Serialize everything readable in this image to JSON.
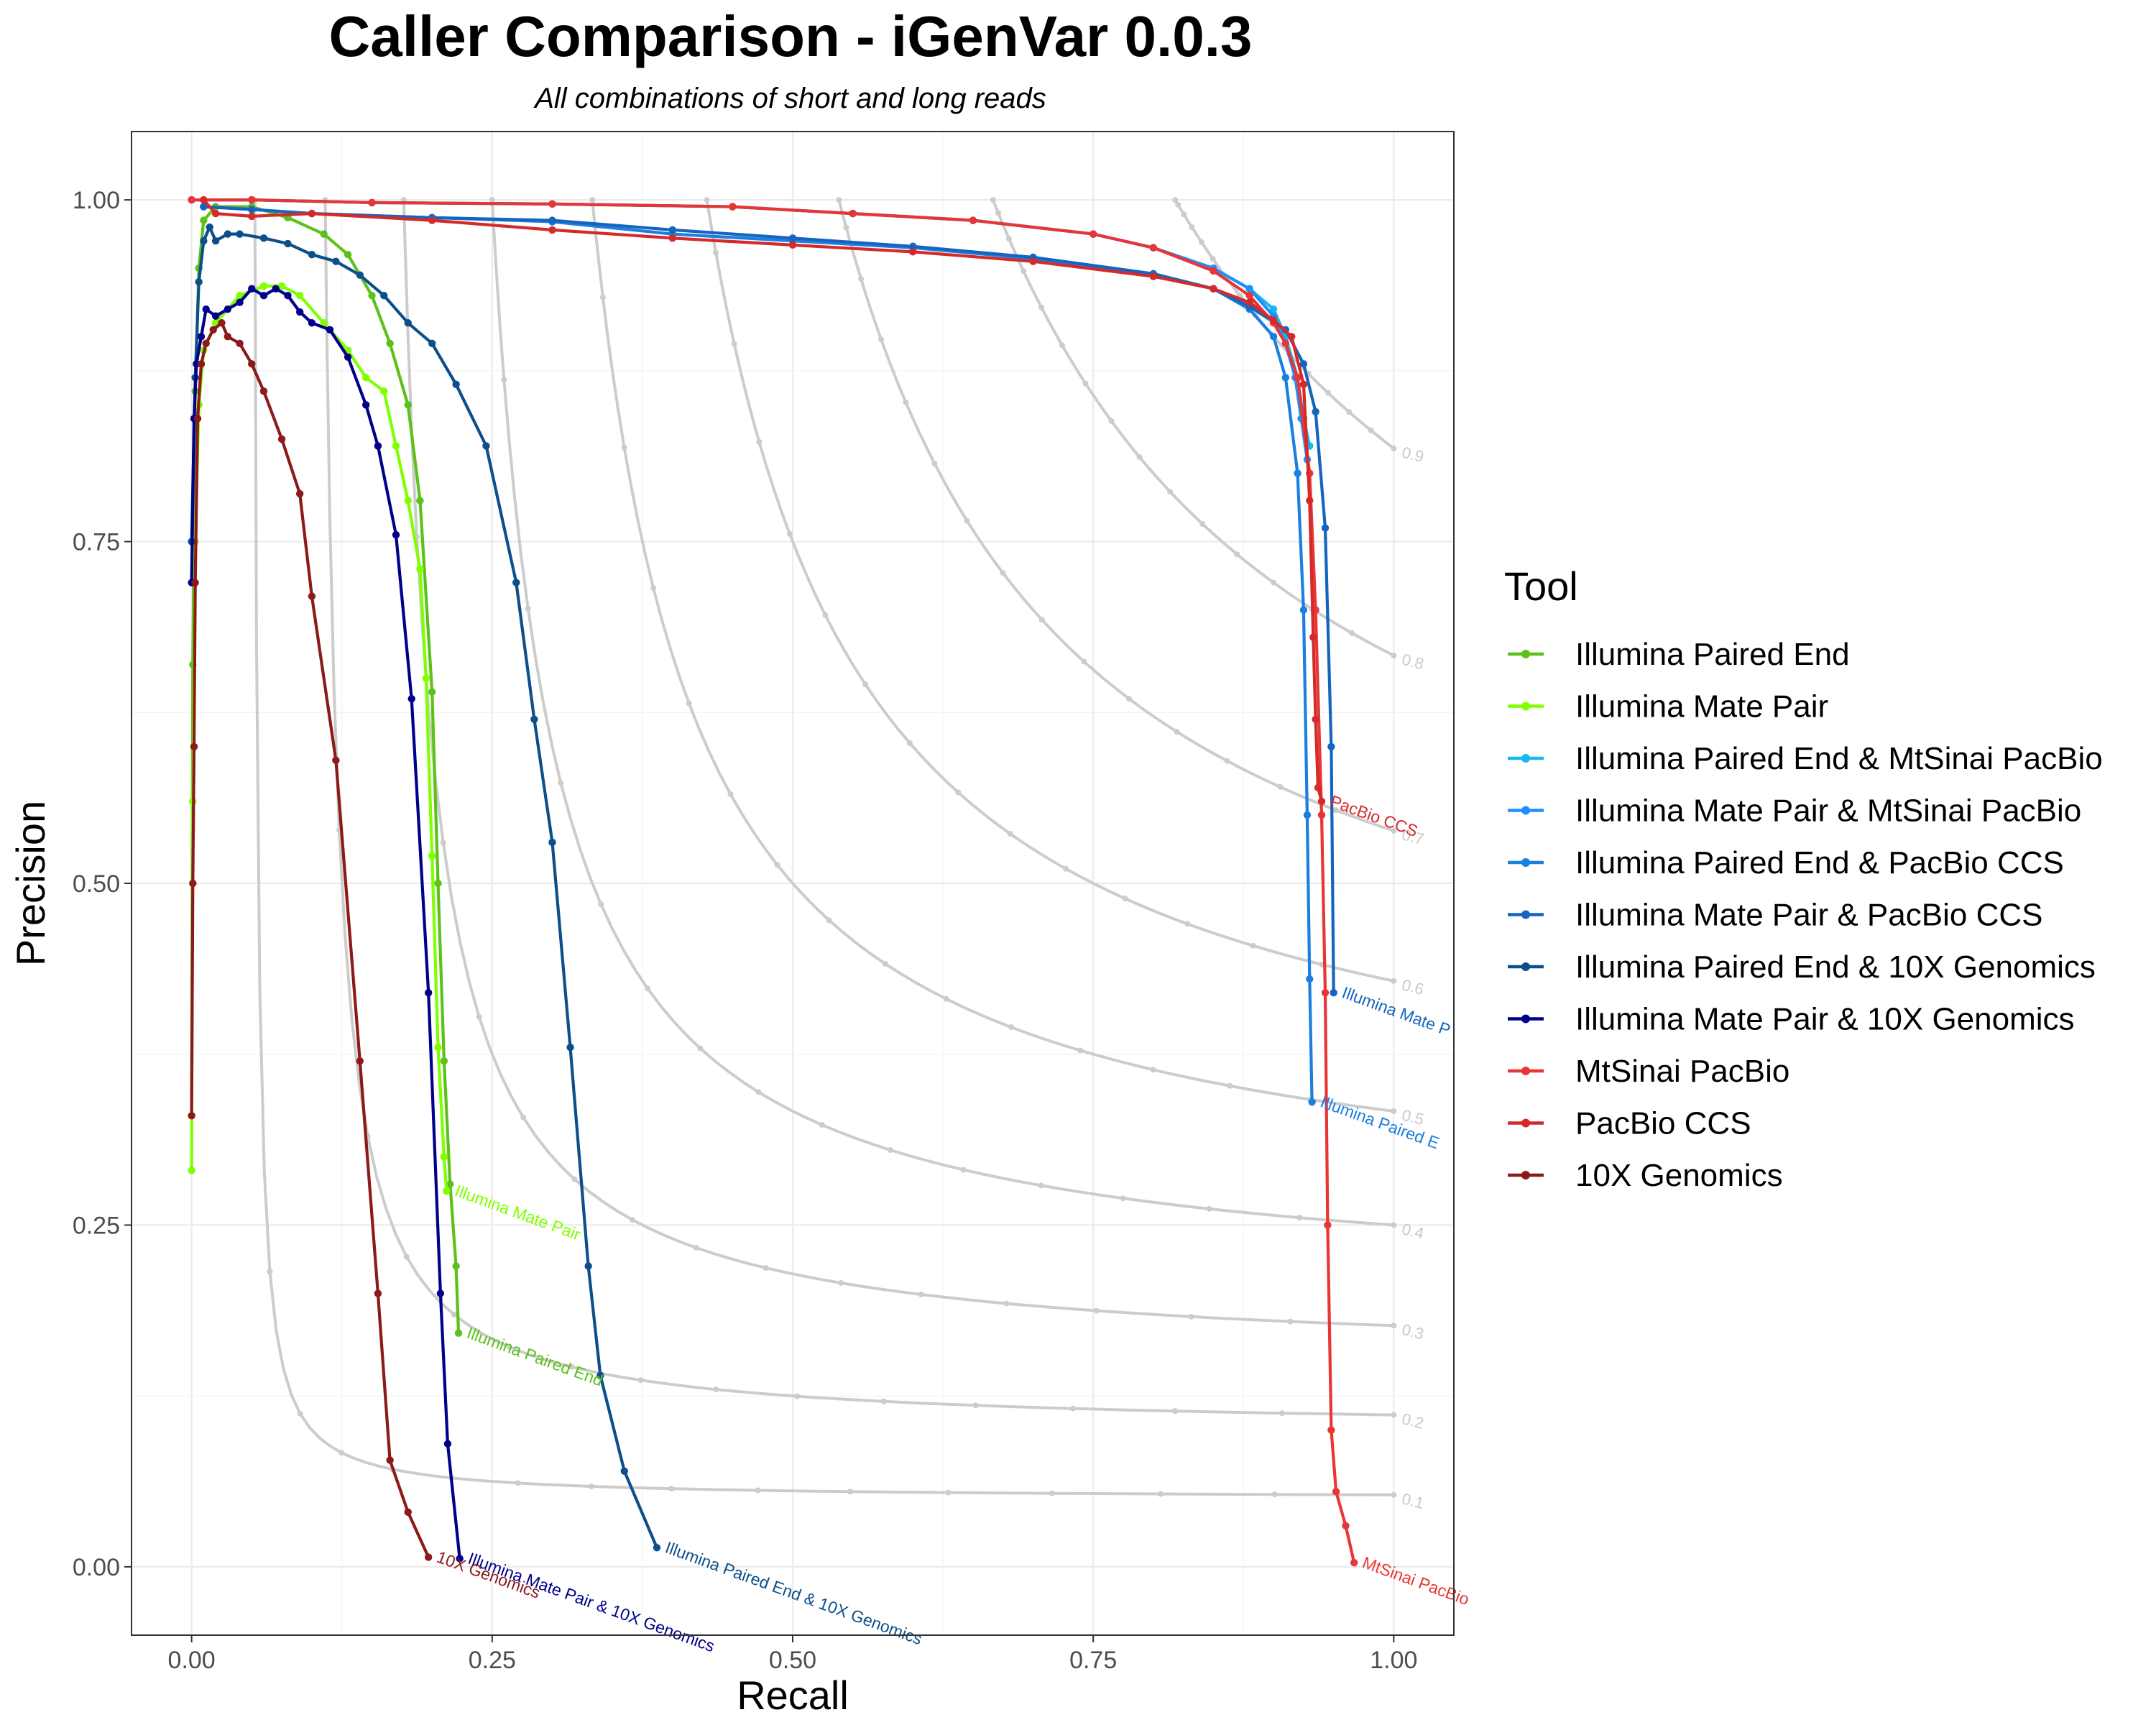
{
  "chart_data": {
    "type": "line",
    "title": "Caller Comparison - iGenVar 0.0.3",
    "subtitle": "All combinations of short and long reads",
    "xlabel": "Recall",
    "ylabel": "Precision",
    "xlim": [
      -0.05,
      1.05
    ],
    "ylim": [
      -0.05,
      1.05
    ],
    "x_ticks": [
      "0.00",
      "0.25",
      "0.50",
      "0.75",
      "1.00"
    ],
    "y_ticks": [
      "0.00",
      "0.25",
      "0.50",
      "0.75",
      "1.00"
    ],
    "grid": true,
    "legend": {
      "title": "Tool",
      "position": "right"
    },
    "iso_f1_curves": [
      {
        "label": "0.1",
        "f": 0.1
      },
      {
        "label": "0.2",
        "f": 0.2
      },
      {
        "label": "0.3",
        "f": 0.3
      },
      {
        "label": "0.4",
        "f": 0.4
      },
      {
        "label": "0.5",
        "f": 0.5
      },
      {
        "label": "0.6",
        "f": 0.6
      },
      {
        "label": "0.7",
        "f": 0.7
      },
      {
        "label": "0.8",
        "f": 0.8
      },
      {
        "label": "0.9",
        "f": 0.9
      }
    ],
    "series": [
      {
        "name": "Illumina Paired End",
        "color": "#5cc21a",
        "end_label": "Illumina Paired End",
        "points": [
          [
            0,
            0.33
          ],
          [
            0.001,
            0.66
          ],
          [
            0.003,
            0.86
          ],
          [
            0.006,
            0.95
          ],
          [
            0.01,
            0.985
          ],
          [
            0.02,
            0.995
          ],
          [
            0.05,
            0.995
          ],
          [
            0.08,
            0.987
          ],
          [
            0.11,
            0.975
          ],
          [
            0.13,
            0.96
          ],
          [
            0.15,
            0.93
          ],
          [
            0.165,
            0.895
          ],
          [
            0.18,
            0.85
          ],
          [
            0.19,
            0.78
          ],
          [
            0.2,
            0.64
          ],
          [
            0.205,
            0.5
          ],
          [
            0.21,
            0.37
          ],
          [
            0.215,
            0.28
          ],
          [
            0.22,
            0.22
          ],
          [
            0.222,
            0.171
          ]
        ]
      },
      {
        "name": "Illumina Mate Pair",
        "color": "#7fff00",
        "end_label": "Illumina Mate Pair",
        "points": [
          [
            0,
            0.29
          ],
          [
            0.001,
            0.56
          ],
          [
            0.003,
            0.75
          ],
          [
            0.006,
            0.85
          ],
          [
            0.01,
            0.89
          ],
          [
            0.02,
            0.91
          ],
          [
            0.04,
            0.93
          ],
          [
            0.06,
            0.937
          ],
          [
            0.075,
            0.937
          ],
          [
            0.09,
            0.93
          ],
          [
            0.11,
            0.91
          ],
          [
            0.13,
            0.89
          ],
          [
            0.145,
            0.87
          ],
          [
            0.16,
            0.86
          ],
          [
            0.17,
            0.82
          ],
          [
            0.18,
            0.78
          ],
          [
            0.19,
            0.73
          ],
          [
            0.195,
            0.65
          ],
          [
            0.2,
            0.52
          ],
          [
            0.205,
            0.38
          ],
          [
            0.21,
            0.3
          ],
          [
            0.212,
            0.275
          ]
        ]
      },
      {
        "name": "Illumina Paired End & MtSinai PacBio",
        "color": "#17b8ec",
        "end_label": "",
        "points": [
          [
            0,
            1.0
          ],
          [
            0.05,
            1.0
          ],
          [
            0.15,
            0.998
          ],
          [
            0.3,
            0.997
          ],
          [
            0.45,
            0.995
          ],
          [
            0.55,
            0.99
          ],
          [
            0.65,
            0.985
          ],
          [
            0.75,
            0.975
          ],
          [
            0.8,
            0.965
          ],
          [
            0.85,
            0.95
          ],
          [
            0.88,
            0.935
          ],
          [
            0.9,
            0.92
          ],
          [
            0.91,
            0.9
          ],
          [
            0.92,
            0.87
          ],
          [
            0.925,
            0.84
          ],
          [
            0.93,
            0.82
          ]
        ]
      },
      {
        "name": "Illumina Mate Pair & MtSinai PacBio",
        "color": "#1e90ff",
        "end_label": "",
        "points": [
          [
            0,
            1.0
          ],
          [
            0.05,
            1.0
          ],
          [
            0.15,
            0.998
          ],
          [
            0.3,
            0.997
          ],
          [
            0.45,
            0.995
          ],
          [
            0.55,
            0.99
          ],
          [
            0.65,
            0.985
          ],
          [
            0.75,
            0.975
          ],
          [
            0.8,
            0.965
          ],
          [
            0.85,
            0.95
          ],
          [
            0.88,
            0.935
          ],
          [
            0.9,
            0.915
          ],
          [
            0.91,
            0.895
          ],
          [
            0.918,
            0.87
          ],
          [
            0.923,
            0.84
          ],
          [
            0.928,
            0.81
          ]
        ]
      },
      {
        "name": "Illumina Paired End & PacBio CCS",
        "color": "#1b7fe0",
        "end_label": "Illumina Paired E",
        "points": [
          [
            0.01,
            0.995
          ],
          [
            0.05,
            0.993
          ],
          [
            0.1,
            0.99
          ],
          [
            0.2,
            0.987
          ],
          [
            0.3,
            0.984
          ],
          [
            0.4,
            0.975
          ],
          [
            0.5,
            0.97
          ],
          [
            0.6,
            0.965
          ],
          [
            0.7,
            0.957
          ],
          [
            0.8,
            0.945
          ],
          [
            0.85,
            0.935
          ],
          [
            0.88,
            0.92
          ],
          [
            0.9,
            0.9
          ],
          [
            0.91,
            0.87
          ],
          [
            0.92,
            0.8
          ],
          [
            0.925,
            0.7
          ],
          [
            0.928,
            0.55
          ],
          [
            0.93,
            0.43
          ],
          [
            0.932,
            0.34
          ]
        ]
      },
      {
        "name": "Illumina Mate Pair & PacBio CCS",
        "color": "#1565c0",
        "end_label": "Illumina Mate P",
        "points": [
          [
            0.01,
            0.995
          ],
          [
            0.05,
            0.993
          ],
          [
            0.1,
            0.99
          ],
          [
            0.2,
            0.987
          ],
          [
            0.3,
            0.985
          ],
          [
            0.4,
            0.978
          ],
          [
            0.5,
            0.972
          ],
          [
            0.6,
            0.966
          ],
          [
            0.7,
            0.958
          ],
          [
            0.8,
            0.946
          ],
          [
            0.85,
            0.935
          ],
          [
            0.88,
            0.922
          ],
          [
            0.91,
            0.905
          ],
          [
            0.925,
            0.88
          ],
          [
            0.935,
            0.845
          ],
          [
            0.943,
            0.76
          ],
          [
            0.948,
            0.6
          ],
          [
            0.95,
            0.42
          ]
        ]
      },
      {
        "name": "Illumina Paired End & 10X Genomics",
        "color": "#0d4f8b",
        "end_label": "Illumina Paired End & 10X Genomics",
        "points": [
          [
            0,
            0.75
          ],
          [
            0.003,
            0.87
          ],
          [
            0.006,
            0.94
          ],
          [
            0.01,
            0.97
          ],
          [
            0.015,
            0.98
          ],
          [
            0.02,
            0.97
          ],
          [
            0.03,
            0.975
          ],
          [
            0.04,
            0.975
          ],
          [
            0.06,
            0.972
          ],
          [
            0.08,
            0.968
          ],
          [
            0.1,
            0.96
          ],
          [
            0.12,
            0.955
          ],
          [
            0.14,
            0.945
          ],
          [
            0.16,
            0.93
          ],
          [
            0.18,
            0.91
          ],
          [
            0.2,
            0.895
          ],
          [
            0.22,
            0.865
          ],
          [
            0.245,
            0.82
          ],
          [
            0.27,
            0.72
          ],
          [
            0.285,
            0.62
          ],
          [
            0.3,
            0.53
          ],
          [
            0.315,
            0.38
          ],
          [
            0.33,
            0.22
          ],
          [
            0.34,
            0.14
          ],
          [
            0.36,
            0.07
          ],
          [
            0.387,
            0.014
          ]
        ]
      },
      {
        "name": "Illumina Mate Pair & 10X Genomics",
        "color": "#00008b",
        "end_label": "Illumina Mate Pair & 10X Genomics",
        "points": [
          [
            0,
            0.72
          ],
          [
            0.002,
            0.84
          ],
          [
            0.004,
            0.88
          ],
          [
            0.008,
            0.9
          ],
          [
            0.012,
            0.92
          ],
          [
            0.02,
            0.915
          ],
          [
            0.03,
            0.92
          ],
          [
            0.04,
            0.925
          ],
          [
            0.05,
            0.935
          ],
          [
            0.06,
            0.93
          ],
          [
            0.07,
            0.935
          ],
          [
            0.08,
            0.93
          ],
          [
            0.09,
            0.918
          ],
          [
            0.1,
            0.91
          ],
          [
            0.115,
            0.905
          ],
          [
            0.13,
            0.885
          ],
          [
            0.145,
            0.85
          ],
          [
            0.155,
            0.82
          ],
          [
            0.17,
            0.755
          ],
          [
            0.183,
            0.635
          ],
          [
            0.197,
            0.42
          ],
          [
            0.207,
            0.2
          ],
          [
            0.213,
            0.09
          ],
          [
            0.223,
            0.006
          ]
        ]
      },
      {
        "name": "MtSinai PacBio",
        "color": "#e83535",
        "end_label": "MtSinai PacBio",
        "points": [
          [
            0,
            1.0
          ],
          [
            0.05,
            1.0
          ],
          [
            0.15,
            0.998
          ],
          [
            0.3,
            0.997
          ],
          [
            0.45,
            0.995
          ],
          [
            0.55,
            0.99
          ],
          [
            0.65,
            0.985
          ],
          [
            0.75,
            0.975
          ],
          [
            0.8,
            0.965
          ],
          [
            0.85,
            0.948
          ],
          [
            0.88,
            0.93
          ],
          [
            0.9,
            0.91
          ],
          [
            0.91,
            0.895
          ],
          [
            0.92,
            0.87
          ],
          [
            0.93,
            0.8
          ],
          [
            0.935,
            0.7
          ],
          [
            0.94,
            0.55
          ],
          [
            0.943,
            0.42
          ],
          [
            0.945,
            0.25
          ],
          [
            0.948,
            0.1
          ],
          [
            0.952,
            0.055
          ],
          [
            0.96,
            0.03
          ],
          [
            0.967,
            0.003
          ]
        ]
      },
      {
        "name": "PacBio CCS",
        "color": "#d42a2a",
        "end_label": "PacBio CCS",
        "points": [
          [
            0.01,
            1.0
          ],
          [
            0.02,
            0.99
          ],
          [
            0.05,
            0.988
          ],
          [
            0.1,
            0.99
          ],
          [
            0.2,
            0.985
          ],
          [
            0.3,
            0.978
          ],
          [
            0.4,
            0.972
          ],
          [
            0.5,
            0.967
          ],
          [
            0.6,
            0.962
          ],
          [
            0.7,
            0.955
          ],
          [
            0.8,
            0.944
          ],
          [
            0.85,
            0.935
          ],
          [
            0.88,
            0.925
          ],
          [
            0.9,
            0.912
          ],
          [
            0.915,
            0.9
          ],
          [
            0.925,
            0.865
          ],
          [
            0.93,
            0.78
          ],
          [
            0.933,
            0.68
          ],
          [
            0.935,
            0.62
          ],
          [
            0.937,
            0.57
          ],
          [
            0.94,
            0.56
          ]
        ]
      },
      {
        "name": "10X Genomics",
        "color": "#8b1a1a",
        "end_label": "10X Genomics",
        "points": [
          [
            0,
            0.33
          ],
          [
            0.001,
            0.5
          ],
          [
            0.002,
            0.6
          ],
          [
            0.003,
            0.72
          ],
          [
            0.005,
            0.84
          ],
          [
            0.008,
            0.88
          ],
          [
            0.012,
            0.895
          ],
          [
            0.018,
            0.905
          ],
          [
            0.025,
            0.91
          ],
          [
            0.03,
            0.9
          ],
          [
            0.04,
            0.895
          ],
          [
            0.05,
            0.88
          ],
          [
            0.06,
            0.86
          ],
          [
            0.075,
            0.825
          ],
          [
            0.09,
            0.785
          ],
          [
            0.1,
            0.71
          ],
          [
            0.12,
            0.59
          ],
          [
            0.14,
            0.37
          ],
          [
            0.155,
            0.2
          ],
          [
            0.165,
            0.078
          ],
          [
            0.18,
            0.04
          ],
          [
            0.197,
            0.007
          ]
        ]
      }
    ]
  }
}
